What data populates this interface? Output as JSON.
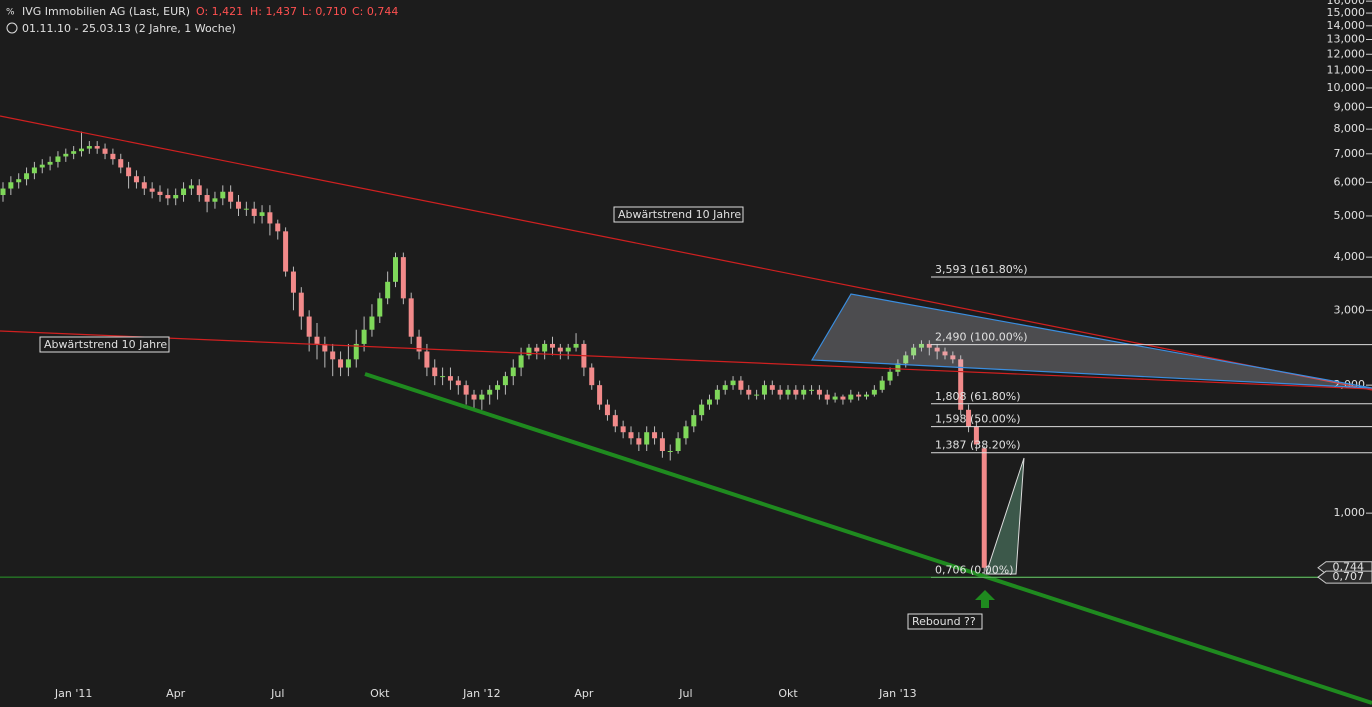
{
  "chart_data": {
    "type": "candlestick",
    "title": "IVG Immobilien AG (Last, EUR)",
    "header_values": [
      "O: 1,421",
      "H: 1,437",
      "L: 0,710",
      "C: 0,744"
    ],
    "subtitle": "01.11.10 - 25.03.13 (2 Jahre, 1 Woche)",
    "log_scale": true,
    "up_color": "#7fd85a",
    "down_color": "#f28a8a",
    "categories": [
      null,
      null,
      null,
      null,
      null,
      null,
      null,
      null,
      null,
      "Jan '11",
      null,
      null,
      null,
      null,
      null,
      null,
      null,
      null,
      null,
      null,
      null,
      null,
      "Apr",
      null,
      null,
      null,
      null,
      null,
      null,
      null,
      null,
      null,
      null,
      null,
      null,
      "Jul",
      null,
      null,
      null,
      null,
      null,
      null,
      null,
      null,
      null,
      null,
      null,
      null,
      "Okt",
      null,
      null,
      null,
      null,
      null,
      null,
      null,
      null,
      null,
      null,
      null,
      null,
      "Jan '12",
      null,
      null,
      null,
      null,
      null,
      null,
      null,
      null,
      null,
      null,
      null,
      null,
      "Apr",
      null,
      null,
      null,
      null,
      null,
      null,
      null,
      null,
      null,
      null,
      null,
      null,
      "Jul",
      null,
      null,
      null,
      null,
      null,
      null,
      null,
      null,
      null,
      null,
      null,
      null,
      "Okt",
      null,
      null,
      null,
      null,
      null,
      null,
      null,
      null,
      null,
      null,
      null,
      null,
      null,
      "Jan '13",
      null,
      null,
      null,
      null,
      null,
      null,
      null,
      null,
      null,
      null,
      null
    ],
    "open": [
      5.6,
      5.8,
      6.0,
      6.1,
      6.3,
      6.5,
      6.6,
      6.7,
      6.9,
      7.0,
      7.1,
      7.2,
      7.3,
      7.2,
      7.0,
      6.8,
      6.5,
      6.2,
      6.0,
      5.8,
      5.7,
      5.6,
      5.5,
      5.6,
      5.8,
      5.9,
      5.6,
      5.4,
      5.5,
      5.7,
      5.4,
      5.2,
      5.2,
      5.0,
      5.1,
      4.8,
      4.6,
      3.7,
      3.3,
      2.9,
      2.6,
      2.5,
      2.4,
      2.3,
      2.2,
      2.3,
      2.5,
      2.7,
      2.9,
      3.2,
      3.5,
      4.0,
      3.2,
      2.6,
      2.4,
      2.2,
      2.1,
      2.1,
      2.05,
      2.0,
      1.9,
      1.85,
      1.9,
      1.95,
      2.0,
      2.1,
      2.2,
      2.35,
      2.45,
      2.4,
      2.5,
      2.45,
      2.4,
      2.45,
      2.5,
      2.2,
      2.0,
      1.8,
      1.7,
      1.6,
      1.55,
      1.5,
      1.45,
      1.55,
      1.5,
      1.4,
      1.4,
      1.5,
      1.6,
      1.7,
      1.8,
      1.85,
      1.95,
      2.0,
      2.05,
      1.95,
      1.9,
      1.9,
      2.0,
      1.95,
      1.9,
      1.95,
      1.9,
      1.95,
      1.95,
      1.9,
      1.85,
      1.88,
      1.85,
      1.9,
      1.88,
      1.9,
      1.95,
      2.05,
      2.15,
      2.25,
      2.35,
      2.45,
      2.5,
      2.45,
      2.4,
      2.35,
      2.3,
      1.75,
      1.6,
      1.421
    ],
    "high": [
      6.0,
      6.2,
      6.3,
      6.5,
      6.7,
      6.8,
      6.9,
      7.1,
      7.2,
      7.3,
      7.9,
      7.5,
      7.5,
      7.4,
      7.2,
      7.0,
      6.7,
      6.4,
      6.2,
      6.0,
      5.9,
      5.8,
      5.8,
      6.0,
      6.1,
      6.1,
      5.8,
      5.7,
      5.9,
      5.9,
      5.6,
      5.4,
      5.4,
      5.3,
      5.3,
      4.9,
      4.7,
      3.8,
      3.4,
      3.0,
      2.8,
      2.6,
      2.5,
      2.4,
      2.5,
      2.7,
      2.9,
      3.1,
      3.3,
      3.7,
      4.1,
      4.1,
      3.3,
      2.7,
      2.5,
      2.3,
      2.2,
      2.2,
      2.1,
      2.05,
      1.95,
      1.95,
      2.0,
      2.05,
      2.15,
      2.3,
      2.45,
      2.5,
      2.5,
      2.55,
      2.6,
      2.5,
      2.5,
      2.65,
      2.55,
      2.25,
      2.05,
      1.85,
      1.75,
      1.65,
      1.6,
      1.55,
      1.6,
      1.6,
      1.55,
      1.45,
      1.55,
      1.65,
      1.75,
      1.85,
      1.9,
      2.0,
      2.05,
      2.1,
      2.1,
      2.0,
      1.95,
      2.05,
      2.05,
      2.0,
      2.0,
      2.0,
      2.0,
      2.0,
      2.0,
      1.95,
      1.92,
      1.9,
      1.95,
      1.93,
      1.93,
      2.0,
      2.1,
      2.2,
      2.3,
      2.4,
      2.5,
      2.55,
      2.55,
      2.5,
      2.45,
      2.4,
      2.35,
      1.8,
      1.65,
      1.437
    ],
    "low": [
      5.4,
      5.6,
      5.8,
      5.9,
      6.1,
      6.3,
      6.4,
      6.5,
      6.7,
      6.8,
      6.9,
      7.0,
      7.0,
      6.8,
      6.6,
      6.3,
      5.8,
      5.8,
      5.6,
      5.5,
      5.4,
      5.3,
      5.3,
      5.4,
      5.6,
      5.4,
      5.1,
      5.2,
      5.3,
      5.2,
      5.0,
      5.0,
      4.8,
      4.8,
      4.5,
      4.4,
      3.6,
      3.0,
      2.7,
      2.4,
      2.3,
      2.2,
      2.1,
      2.1,
      2.1,
      2.2,
      2.4,
      2.6,
      2.8,
      3.1,
      3.4,
      3.1,
      2.5,
      2.3,
      2.1,
      2.0,
      2.0,
      1.95,
      1.9,
      1.8,
      1.75,
      1.75,
      1.8,
      1.85,
      1.9,
      2.0,
      2.1,
      2.3,
      2.3,
      2.3,
      2.35,
      2.3,
      2.3,
      2.4,
      2.1,
      1.95,
      1.75,
      1.65,
      1.55,
      1.5,
      1.45,
      1.4,
      1.4,
      1.45,
      1.35,
      1.33,
      1.38,
      1.45,
      1.55,
      1.65,
      1.75,
      1.8,
      1.9,
      1.95,
      1.9,
      1.85,
      1.85,
      1.85,
      1.9,
      1.85,
      1.85,
      1.85,
      1.85,
      1.9,
      1.85,
      1.8,
      1.82,
      1.8,
      1.82,
      1.84,
      1.85,
      1.88,
      1.92,
      2.0,
      2.1,
      2.2,
      2.3,
      2.4,
      2.35,
      2.3,
      2.3,
      2.25,
      1.7,
      1.55,
      1.4,
      0.71
    ],
    "close": [
      5.8,
      6.0,
      6.1,
      6.3,
      6.5,
      6.6,
      6.7,
      6.9,
      7.0,
      7.1,
      7.2,
      7.3,
      7.2,
      7.0,
      6.8,
      6.5,
      6.2,
      6.0,
      5.8,
      5.7,
      5.6,
      5.5,
      5.6,
      5.8,
      5.9,
      5.6,
      5.4,
      5.5,
      5.7,
      5.4,
      5.2,
      5.2,
      5.0,
      5.1,
      4.8,
      4.6,
      3.7,
      3.3,
      2.9,
      2.6,
      2.5,
      2.4,
      2.3,
      2.2,
      2.3,
      2.5,
      2.7,
      2.9,
      3.2,
      3.5,
      4.0,
      3.2,
      2.6,
      2.4,
      2.2,
      2.1,
      2.1,
      2.05,
      2.0,
      1.9,
      1.85,
      1.9,
      1.95,
      2.0,
      2.1,
      2.2,
      2.35,
      2.45,
      2.4,
      2.5,
      2.45,
      2.4,
      2.45,
      2.5,
      2.2,
      2.0,
      1.8,
      1.7,
      1.6,
      1.55,
      1.5,
      1.45,
      1.55,
      1.5,
      1.4,
      1.4,
      1.5,
      1.6,
      1.7,
      1.8,
      1.85,
      1.95,
      2.0,
      2.05,
      1.95,
      1.9,
      1.9,
      2.0,
      1.95,
      1.9,
      1.95,
      1.9,
      1.95,
      1.95,
      1.9,
      1.85,
      1.88,
      1.85,
      1.9,
      1.88,
      1.9,
      1.95,
      2.05,
      2.15,
      2.25,
      2.35,
      2.45,
      2.5,
      2.45,
      2.4,
      2.35,
      2.3,
      1.75,
      1.6,
      1.45,
      0.744
    ],
    "ylim": [
      0.35,
      16.1
    ],
    "yticks": [
      {
        "value": 1,
        "label": "1,000"
      },
      {
        "value": 2,
        "label": "2,000"
      },
      {
        "value": 3,
        "label": "3,000"
      },
      {
        "value": 4,
        "label": "4,000"
      },
      {
        "value": 5,
        "label": "5,000"
      },
      {
        "value": 6,
        "label": "6,000"
      },
      {
        "value": 7,
        "label": "7,000"
      },
      {
        "value": 8,
        "label": "8,000"
      },
      {
        "value": 9,
        "label": "9,000"
      },
      {
        "value": 10,
        "label": "10,000"
      },
      {
        "value": 11,
        "label": "11,000"
      },
      {
        "value": 12,
        "label": "12,000"
      },
      {
        "value": 13,
        "label": "13,000"
      },
      {
        "value": 14,
        "label": "14,000"
      },
      {
        "value": 15,
        "label": "15,000"
      },
      {
        "value": 16,
        "label": "16,000"
      }
    ],
    "fib_levels": [
      {
        "value": 3.593,
        "label": "3,593 (161.80%)"
      },
      {
        "value": 2.49,
        "label": "2,490 (100.00%)"
      },
      {
        "value": 1.808,
        "label": "1,808 (61.80%)"
      },
      {
        "value": 1.598,
        "label": "1,598 (50.00%)"
      },
      {
        "value": 1.387,
        "label": "1,387 (38.20%)"
      },
      {
        "value": 0.706,
        "label": "0,706 (0.00%)"
      }
    ],
    "price_tags": [
      {
        "value": 0.744,
        "label": "0,744"
      },
      {
        "value": 0.707,
        "label": "0,707"
      }
    ],
    "annotations": [
      "Abwärtstrend 10 Jahre",
      "Abwärtstrend 10 Jahre",
      "Rebound ??"
    ]
  }
}
